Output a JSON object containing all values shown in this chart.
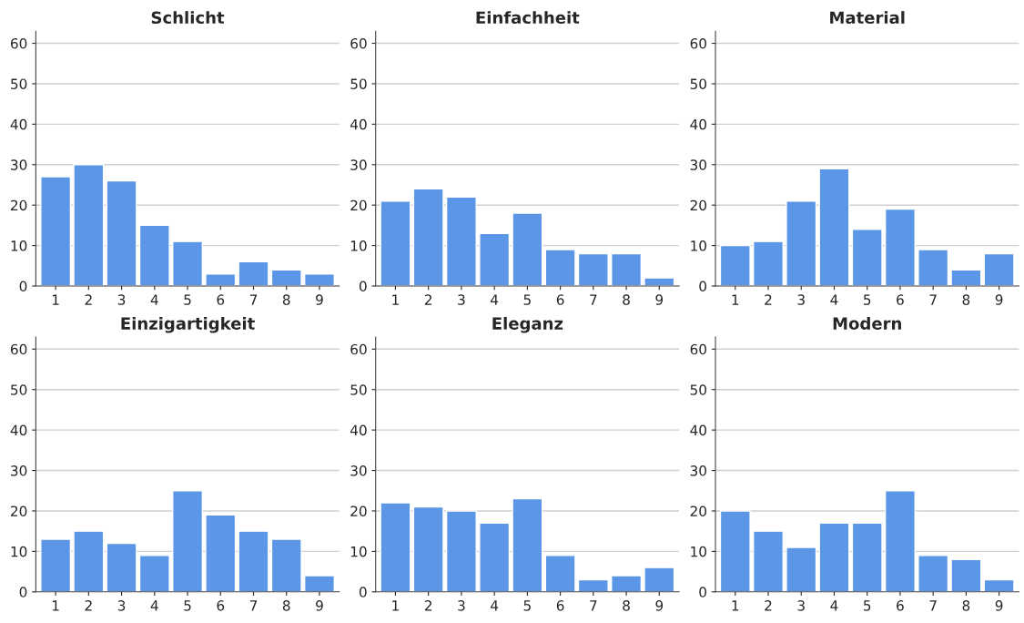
{
  "chart_data": [
    {
      "type": "bar",
      "title": "Schlicht",
      "categories": [
        "1",
        "2",
        "3",
        "4",
        "5",
        "6",
        "7",
        "8",
        "9"
      ],
      "values": [
        27,
        30,
        26,
        15,
        11,
        3,
        6,
        4,
        3
      ],
      "color": "#5b97e6",
      "ylim": [
        0,
        63
      ],
      "yticks": [
        0,
        10,
        20,
        30,
        40,
        50,
        60
      ],
      "grid": "y"
    },
    {
      "type": "bar",
      "title": "Einfachheit",
      "categories": [
        "1",
        "2",
        "3",
        "4",
        "5",
        "6",
        "7",
        "8",
        "9"
      ],
      "values": [
        21,
        24,
        22,
        13,
        18,
        9,
        8,
        8,
        2
      ],
      "color": "#5b97e6",
      "ylim": [
        0,
        63
      ],
      "yticks": [
        0,
        10,
        20,
        30,
        40,
        50,
        60
      ],
      "grid": "y"
    },
    {
      "type": "bar",
      "title": "Material",
      "categories": [
        "1",
        "2",
        "3",
        "4",
        "5",
        "6",
        "7",
        "8",
        "9"
      ],
      "values": [
        10,
        11,
        21,
        29,
        14,
        19,
        9,
        4,
        8
      ],
      "color": "#5b97e6",
      "ylim": [
        0,
        63
      ],
      "yticks": [
        0,
        10,
        20,
        30,
        40,
        50,
        60
      ],
      "grid": "y"
    },
    {
      "type": "bar",
      "title": "Einzigartigkeit",
      "categories": [
        "1",
        "2",
        "3",
        "4",
        "5",
        "6",
        "7",
        "8",
        "9"
      ],
      "values": [
        13,
        15,
        12,
        9,
        25,
        19,
        15,
        13,
        4
      ],
      "color": "#5b97e6",
      "ylim": [
        0,
        63
      ],
      "yticks": [
        0,
        10,
        20,
        30,
        40,
        50,
        60
      ],
      "grid": "y"
    },
    {
      "type": "bar",
      "title": "Eleganz",
      "categories": [
        "1",
        "2",
        "3",
        "4",
        "5",
        "6",
        "7",
        "8",
        "9"
      ],
      "values": [
        22,
        21,
        20,
        17,
        23,
        9,
        3,
        4,
        6
      ],
      "color": "#5b97e6",
      "ylim": [
        0,
        63
      ],
      "yticks": [
        0,
        10,
        20,
        30,
        40,
        50,
        60
      ],
      "grid": "y"
    },
    {
      "type": "bar",
      "title": "Modern",
      "categories": [
        "1",
        "2",
        "3",
        "4",
        "5",
        "6",
        "7",
        "8",
        "9"
      ],
      "values": [
        20,
        15,
        11,
        17,
        17,
        25,
        9,
        8,
        3
      ],
      "color": "#5b97e6",
      "ylim": [
        0,
        63
      ],
      "yticks": [
        0,
        10,
        20,
        30,
        40,
        50,
        60
      ],
      "grid": "y"
    }
  ]
}
